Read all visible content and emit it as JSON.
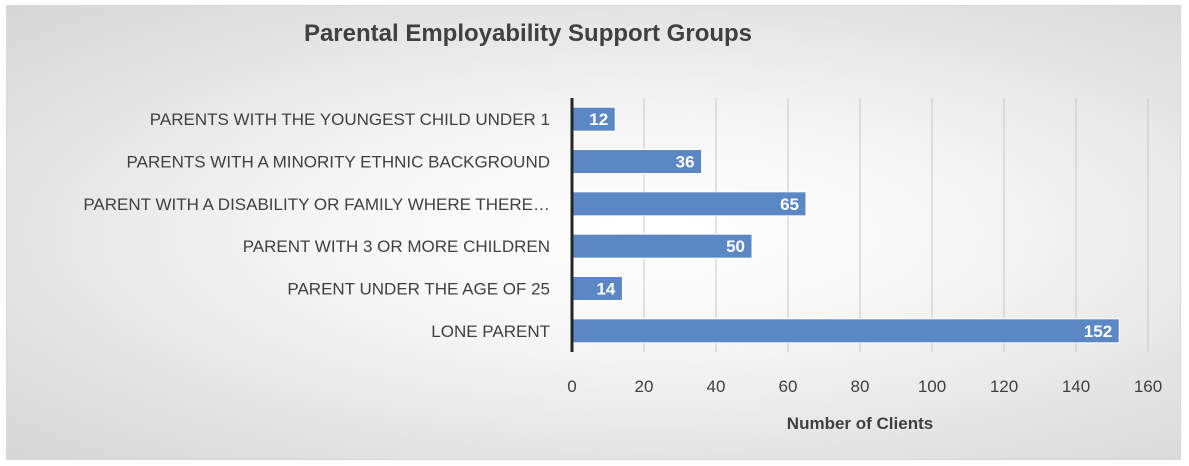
{
  "chart_data": {
    "type": "bar",
    "orientation": "horizontal",
    "title": "Parental Employability Support Groups",
    "xlabel": "Number of Clients",
    "ylabel": "",
    "categories": [
      "PARENTS WITH THE YOUNGEST CHILD UNDER 1",
      "PARENTS WITH A MINORITY ETHNIC BACKGROUND",
      "PARENT WITH A DISABILITY OR FAMILY WHERE THERE…",
      "PARENT WITH 3 OR MORE CHILDREN",
      "PARENT UNDER THE AGE OF 25",
      "LONE PARENT"
    ],
    "values": [
      12,
      36,
      65,
      50,
      14,
      152
    ],
    "data_labels": [
      "12",
      "36",
      "65",
      "50",
      "14",
      "152"
    ],
    "xlim": [
      0,
      160
    ],
    "x_ticks": [
      0,
      20,
      40,
      60,
      80,
      100,
      120,
      140,
      160
    ],
    "x_tick_labels": [
      "0",
      "20",
      "40",
      "60",
      "80",
      "100",
      "120",
      "140",
      "160"
    ],
    "grid": true,
    "legend": "none",
    "bar_color": "#5b87c5"
  }
}
